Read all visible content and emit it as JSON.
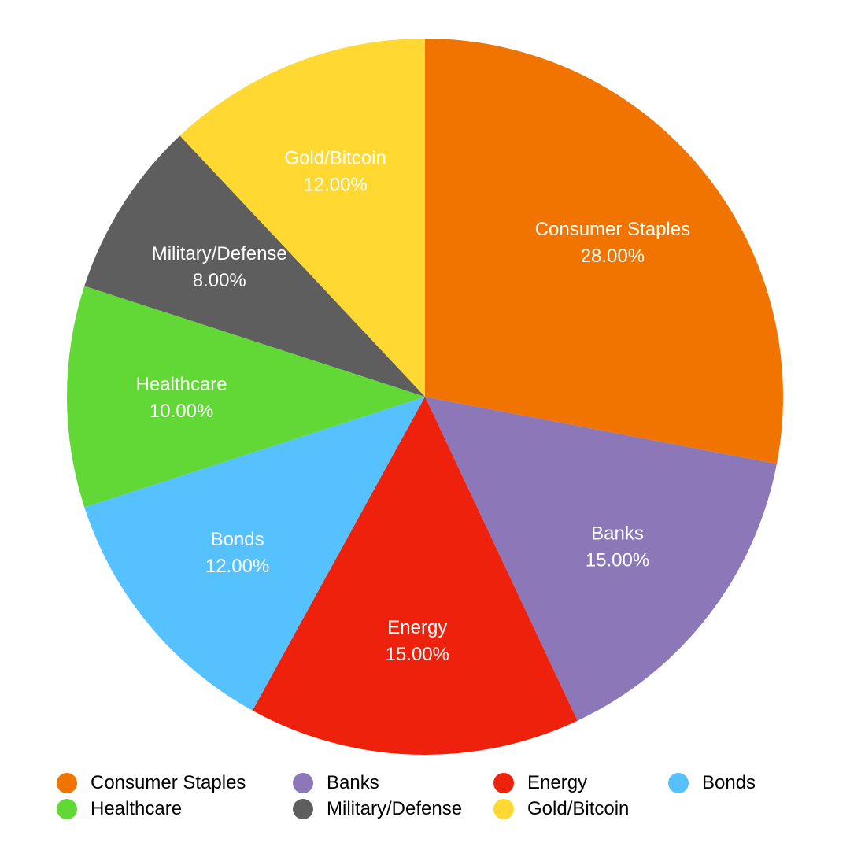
{
  "chart_data": {
    "type": "pie",
    "title": "",
    "legend_position": "bottom",
    "slices": [
      {
        "name": "Consumer Staples",
        "value": 28,
        "label": "28.00%",
        "color": "#F27400"
      },
      {
        "name": "Banks",
        "value": 15,
        "label": "15.00%",
        "color": "#8C78B8"
      },
      {
        "name": "Energy",
        "value": 15,
        "label": "15.00%",
        "color": "#EE220C"
      },
      {
        "name": "Bonds",
        "value": 12,
        "label": "12.00%",
        "color": "#56C1FF"
      },
      {
        "name": "Healthcare",
        "value": 10,
        "label": "10.00%",
        "color": "#61D836"
      },
      {
        "name": "Military/Defense",
        "value": 8,
        "label": "8.00%",
        "color": "#5E5E5E"
      },
      {
        "name": "Gold/Bitcoin",
        "value": 12,
        "label": "12.00%",
        "color": "#FFD932"
      }
    ],
    "legend_rows": [
      [
        "Consumer Staples",
        "Banks",
        "Energy",
        "Bonds"
      ],
      [
        "Healthcare",
        "Military/Defense",
        "Gold/Bitcoin"
      ]
    ]
  }
}
